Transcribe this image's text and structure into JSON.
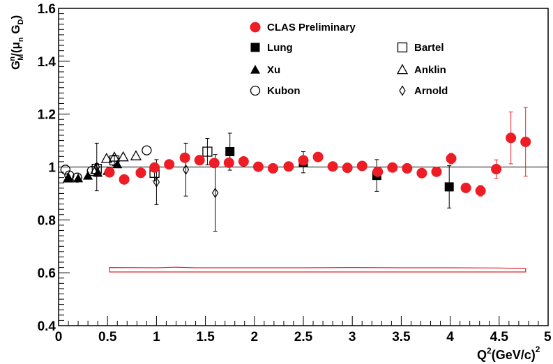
{
  "chart_data": {
    "type": "scatter",
    "title": "",
    "xlabel": {
      "base": "Q",
      "sup": "2",
      "rest": "(GeV/c)",
      "sup2": "2"
    },
    "ylabel": {
      "g": "G",
      "gsub": "M",
      "gsup": "n",
      "mid": "/(μ",
      "musub": "n",
      "g2": " G",
      "g2sub": "D",
      "close": ")"
    },
    "xlim": [
      0,
      5
    ],
    "ylim": [
      0.4,
      1.6
    ],
    "x_ticks": [
      "0",
      "0.5",
      "1",
      "1.5",
      "2",
      "2.5",
      "3",
      "3.5",
      "4",
      "4.5",
      "5"
    ],
    "x_tick_values": [
      0,
      0.5,
      1,
      1.5,
      2,
      2.5,
      3,
      3.5,
      4,
      4.5,
      5
    ],
    "y_ticks": [
      "0.4",
      "0.6",
      "0.8",
      "1",
      "1.2",
      "1.4",
      "1.6"
    ],
    "y_tick_values": [
      0.4,
      0.6,
      0.8,
      1.0,
      1.2,
      1.4,
      1.6
    ],
    "reference_line": 1.0,
    "systematic_band": {
      "x_range": [
        0.52,
        4.77
      ],
      "upper": [
        [
          0.52,
          0.62
        ],
        [
          1.0,
          0.619
        ],
        [
          1.2,
          0.621
        ],
        [
          1.4,
          0.619
        ],
        [
          2.0,
          0.619
        ],
        [
          2.5,
          0.619
        ],
        [
          3.0,
          0.62
        ],
        [
          3.5,
          0.619
        ],
        [
          4.0,
          0.619
        ],
        [
          4.5,
          0.618
        ],
        [
          4.77,
          0.616
        ]
      ],
      "lower": [
        [
          0.52,
          0.603
        ],
        [
          4.77,
          0.603
        ]
      ],
      "color": "#e8202a"
    },
    "legend": {
      "placement": "top",
      "entries": [
        {
          "name": "CLAS Preliminary",
          "marker": "filled-circle"
        },
        {
          "name": "Lung",
          "marker": "filled-square"
        },
        {
          "name": "Bartel",
          "marker": "open-square"
        },
        {
          "name": "Xu",
          "marker": "filled-triangle"
        },
        {
          "name": "Anklin",
          "marker": "open-triangle"
        },
        {
          "name": "Kubon",
          "marker": "open-circle"
        },
        {
          "name": "Arnold",
          "marker": "open-diamond"
        }
      ]
    },
    "series": [
      {
        "name": "CLAS Preliminary",
        "marker": "filled-circle",
        "color": "#ee1c24",
        "points": [
          {
            "x": 0.52,
            "y": 0.98,
            "err": 0.01
          },
          {
            "x": 0.67,
            "y": 0.953,
            "err": 0.005
          },
          {
            "x": 0.84,
            "y": 0.978,
            "err": 0.005
          },
          {
            "x": 0.98,
            "y": 0.998,
            "err": 0.005
          },
          {
            "x": 1.13,
            "y": 1.01,
            "err": 0.005
          },
          {
            "x": 1.29,
            "y": 1.035,
            "err": 0.005
          },
          {
            "x": 1.44,
            "y": 1.026,
            "err": 0.005
          },
          {
            "x": 1.59,
            "y": 1.015,
            "err": 0.005
          },
          {
            "x": 1.74,
            "y": 1.016,
            "err": 0.005
          },
          {
            "x": 1.89,
            "y": 1.021,
            "err": 0.005
          },
          {
            "x": 2.04,
            "y": 1.001,
            "err": 0.005
          },
          {
            "x": 2.19,
            "y": 0.995,
            "err": 0.005
          },
          {
            "x": 2.35,
            "y": 1.002,
            "err": 0.005
          },
          {
            "x": 2.5,
            "y": 1.025,
            "err": 0.012
          },
          {
            "x": 2.65,
            "y": 1.038,
            "err": 0.008
          },
          {
            "x": 2.8,
            "y": 1.002,
            "err": 0.005
          },
          {
            "x": 2.95,
            "y": 0.997,
            "err": 0.005
          },
          {
            "x": 3.1,
            "y": 1.004,
            "err": 0.005
          },
          {
            "x": 3.26,
            "y": 0.982,
            "err": 0.005
          },
          {
            "x": 3.41,
            "y": 0.998,
            "err": 0.005
          },
          {
            "x": 3.56,
            "y": 0.995,
            "err": 0.005
          },
          {
            "x": 3.71,
            "y": 0.977,
            "err": 0.014
          },
          {
            "x": 3.86,
            "y": 0.982,
            "err": 0.012
          },
          {
            "x": 4.01,
            "y": 1.032,
            "err": 0.02
          },
          {
            "x": 4.16,
            "y": 0.921,
            "err": 0.015
          },
          {
            "x": 4.31,
            "y": 0.91,
            "err": 0.02
          },
          {
            "x": 4.47,
            "y": 0.992,
            "err": 0.035
          },
          {
            "x": 4.62,
            "y": 1.11,
            "err": 0.098
          },
          {
            "x": 4.77,
            "y": 1.095,
            "err": 0.13
          }
        ]
      },
      {
        "name": "Lung",
        "marker": "filled-square",
        "color": "#000000",
        "points": [
          {
            "x": 1.75,
            "y": 1.058,
            "err": 0.07
          },
          {
            "x": 2.5,
            "y": 1.018,
            "err": 0.04
          },
          {
            "x": 3.25,
            "y": 0.968,
            "err": 0.06
          },
          {
            "x": 3.99,
            "y": 0.925,
            "err": 0.08
          }
        ]
      },
      {
        "name": "Bartel",
        "marker": "open-square",
        "color": "#000000",
        "points": [
          {
            "x": 0.39,
            "y": 0.993,
            "err": 0.02
          },
          {
            "x": 0.57,
            "y": 1.025,
            "err": 0.02
          },
          {
            "x": 0.98,
            "y": 0.978,
            "err": 0.03
          },
          {
            "x": 1.52,
            "y": 1.058,
            "err": 0.05
          }
        ]
      },
      {
        "name": "Xu",
        "marker": "filled-triangle",
        "color": "#000000",
        "points": [
          {
            "x": 0.1,
            "y": 0.958,
            "err": 0.0
          },
          {
            "x": 0.2,
            "y": 0.957,
            "err": 0.0
          },
          {
            "x": 0.3,
            "y": 0.967,
            "err": 0.0
          },
          {
            "x": 0.4,
            "y": 0.978,
            "err": 0.0
          },
          {
            "x": 0.5,
            "y": 0.985,
            "err": 0.0
          },
          {
            "x": 0.6,
            "y": 1.01,
            "err": 0.0
          }
        ]
      },
      {
        "name": "Anklin",
        "marker": "open-triangle",
        "color": "#000000",
        "points": [
          {
            "x": 0.1,
            "y": 0.958,
            "err": 0.0
          },
          {
            "x": 0.38,
            "y": 0.99,
            "err": 0.0
          },
          {
            "x": 0.49,
            "y": 1.032,
            "err": 0.0
          },
          {
            "x": 0.57,
            "y": 1.037,
            "err": 0.0
          },
          {
            "x": 0.66,
            "y": 1.038,
            "err": 0.0
          },
          {
            "x": 0.79,
            "y": 1.042,
            "err": 0.0
          }
        ]
      },
      {
        "name": "Kubon",
        "marker": "open-circle",
        "color": "#000000",
        "points": [
          {
            "x": 0.07,
            "y": 0.99,
            "err": 0.0
          },
          {
            "x": 0.11,
            "y": 0.968,
            "err": 0.0
          },
          {
            "x": 0.19,
            "y": 0.96,
            "err": 0.0
          },
          {
            "x": 0.34,
            "y": 0.985,
            "err": 0.0
          },
          {
            "x": 0.9,
            "y": 1.063,
            "err": 0.0
          }
        ]
      },
      {
        "name": "Arnold",
        "marker": "open-diamond",
        "color": "#000000",
        "points": [
          {
            "x": 0.39,
            "y": 1.0,
            "err": 0.09
          },
          {
            "x": 1.0,
            "y": 0.943,
            "err": 0.085
          },
          {
            "x": 1.3,
            "y": 0.99,
            "err": 0.1
          },
          {
            "x": 1.6,
            "y": 0.902,
            "err": 0.145
          }
        ]
      }
    ]
  }
}
